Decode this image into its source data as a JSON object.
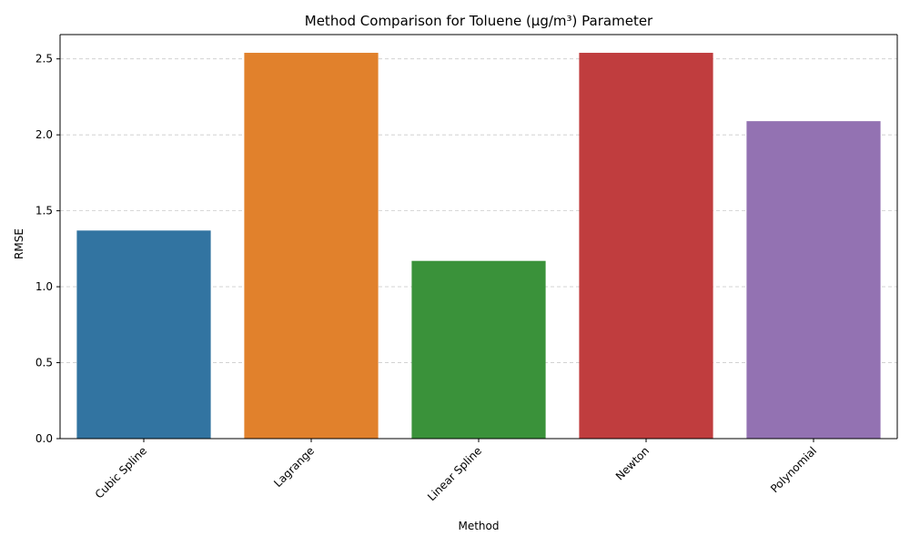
{
  "chart_data": {
    "type": "bar",
    "title": "Method Comparison for Toluene (µg/m³) Parameter",
    "xlabel": "Method",
    "ylabel": "RMSE",
    "categories": [
      "Cubic Spline",
      "Lagrange",
      "Linear Spline",
      "Newton",
      "Polynomial"
    ],
    "values": [
      1.37,
      2.54,
      1.17,
      2.54,
      2.09
    ],
    "colors": [
      "#3274a1",
      "#e1812c",
      "#3a923a",
      "#c03d3e",
      "#9372b2"
    ],
    "ylim": [
      0,
      2.66
    ],
    "yticks": [
      0.0,
      0.5,
      1.0,
      1.5,
      2.0,
      2.5
    ],
    "ytick_labels": [
      "0.0",
      "0.5",
      "1.0",
      "1.5",
      "2.0",
      "2.5"
    ],
    "grid": "y-dashed",
    "xtick_rotation": 45
  }
}
